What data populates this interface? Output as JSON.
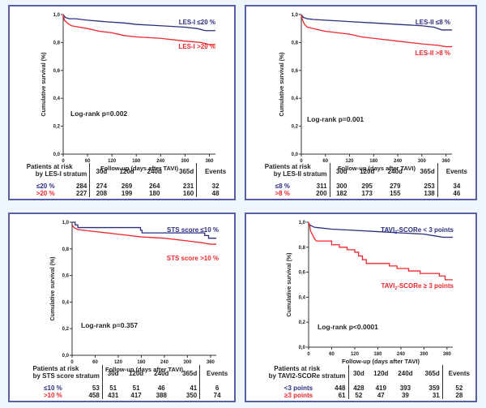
{
  "chart_data": [
    {
      "type": "line",
      "title": "",
      "xlabel": "Follow-up (days after TAVI)",
      "ylabel": "Cumulative survival (%)",
      "xlim": [
        0,
        375
      ],
      "ylim": [
        0,
        1.0
      ],
      "xticks": [
        "0",
        "60",
        "120",
        "180",
        "240",
        "300",
        "360"
      ],
      "yticks": [
        "0,0",
        "0,2",
        "0,4",
        "0,6",
        "0,8",
        "1,0"
      ],
      "annotation": "Log-rank p=0.002",
      "series": [
        {
          "name": "LES-I ≤20 %",
          "color": "#2b2e7f",
          "x": [
            0,
            5,
            15,
            30,
            60,
            100,
            150,
            180,
            240,
            300,
            330,
            350,
            375
          ],
          "y": [
            1.0,
            0.98,
            0.97,
            0.97,
            0.96,
            0.95,
            0.94,
            0.93,
            0.92,
            0.91,
            0.9,
            0.885,
            0.885
          ]
        },
        {
          "name": "LES-I >20 %",
          "color": "#f0262b",
          "x": [
            0,
            3,
            10,
            20,
            40,
            60,
            90,
            120,
            150,
            180,
            240,
            300,
            340,
            360,
            375
          ],
          "y": [
            1.0,
            0.96,
            0.94,
            0.92,
            0.91,
            0.9,
            0.88,
            0.87,
            0.85,
            0.84,
            0.83,
            0.81,
            0.8,
            0.785,
            0.785
          ]
        }
      ],
      "risk_table": {
        "header_label": [
          "Patients at risk",
          "by LES-I stratum"
        ],
        "columns": [
          "30d",
          "120d",
          "240d",
          "365d",
          "Events"
        ],
        "rows": [
          {
            "label": "≤20 %",
            "n": "284",
            "values": [
              "274",
              "269",
              "264",
              "231"
            ],
            "events": "32",
            "color": "blue"
          },
          {
            "label": ">20 %",
            "n": "227",
            "values": [
              "208",
              "199",
              "180",
              "160"
            ],
            "events": "48",
            "color": "red"
          }
        ]
      }
    },
    {
      "type": "line",
      "title": "",
      "xlabel": "Follow-up (days after TAVI)",
      "ylabel": "Cumulative survival (%)",
      "xlim": [
        0,
        375
      ],
      "ylim": [
        0,
        1.0
      ],
      "xticks": [
        "0",
        "60",
        "120",
        "180",
        "240",
        "300",
        "360"
      ],
      "yticks": [
        "0,0",
        "0,2",
        "0,4",
        "0,6",
        "0,8",
        "1,0"
      ],
      "annotation": "Log-rank p=0.001",
      "series": [
        {
          "name": "LES-II ≤8 %",
          "color": "#2b2e7f",
          "x": [
            0,
            5,
            15,
            30,
            60,
            120,
            180,
            240,
            300,
            330,
            350,
            375
          ],
          "y": [
            1.0,
            0.98,
            0.97,
            0.965,
            0.96,
            0.95,
            0.94,
            0.93,
            0.92,
            0.91,
            0.89,
            0.89
          ]
        },
        {
          "name": "LES-II >8 %",
          "color": "#f0262b",
          "x": [
            0,
            3,
            8,
            15,
            30,
            60,
            90,
            120,
            150,
            180,
            240,
            300,
            340,
            360,
            375
          ],
          "y": [
            1.0,
            0.96,
            0.93,
            0.91,
            0.9,
            0.88,
            0.87,
            0.86,
            0.84,
            0.83,
            0.81,
            0.79,
            0.78,
            0.77,
            0.77
          ]
        }
      ],
      "risk_table": {
        "header_label": [
          "Patients at risk",
          "by LES-II stratum"
        ],
        "columns": [
          "30d",
          "120d",
          "240d",
          "365d",
          "Events"
        ],
        "rows": [
          {
            "label": "≤8 %",
            "n": "311",
            "values": [
              "300",
              "295",
              "279",
              "253"
            ],
            "events": "34",
            "color": "blue"
          },
          {
            "label": ">8 %",
            "n": "200",
            "values": [
              "182",
              "173",
              "155",
              "138"
            ],
            "events": "46",
            "color": "red"
          }
        ]
      }
    },
    {
      "type": "line",
      "title": "",
      "xlabel": "Follow-up (days after TAVI)",
      "ylabel": "Cumulative survival (%)",
      "xlim": [
        0,
        375
      ],
      "ylim": [
        0,
        1.0
      ],
      "xticks": [
        "0",
        "60",
        "120",
        "180",
        "240",
        "300",
        "360"
      ],
      "yticks": [
        "0,0",
        "0,2",
        "0,4",
        "0,6",
        "0,8",
        "1,0"
      ],
      "annotation": "Log-rank p=0.357",
      "series": [
        {
          "name": "STS score ≤10 %",
          "color": "#2b2e7f",
          "x": [
            0,
            8,
            8,
            15,
            15,
            178,
            178,
            182,
            182,
            345,
            345,
            355,
            355,
            375
          ],
          "y": [
            1.0,
            1.0,
            0.98,
            0.98,
            0.96,
            0.96,
            0.94,
            0.94,
            0.92,
            0.92,
            0.9,
            0.9,
            0.88,
            0.88
          ]
        },
        {
          "name": "STS score >10 %",
          "color": "#f0262b",
          "x": [
            0,
            5,
            15,
            30,
            60,
            120,
            180,
            240,
            300,
            340,
            360,
            375
          ],
          "y": [
            0.98,
            0.96,
            0.945,
            0.94,
            0.93,
            0.91,
            0.89,
            0.88,
            0.86,
            0.845,
            0.835,
            0.835
          ]
        }
      ],
      "risk_table": {
        "header_label": [
          "Patients at risk",
          "by STS score stratum"
        ],
        "columns": [
          "30d",
          "120d",
          "240d",
          "365d",
          "Events"
        ],
        "rows": [
          {
            "label": "≤10 %",
            "n": "53",
            "values": [
              "51",
              "51",
              "46",
              "41"
            ],
            "events": "6",
            "color": "blue"
          },
          {
            "label": ">10 %",
            "n": "458",
            "values": [
              "431",
              "417",
              "388",
              "350"
            ],
            "events": "74",
            "color": "red"
          }
        ]
      }
    },
    {
      "type": "line",
      "title": "",
      "xlabel": "Follow-up (days after TAVI)",
      "ylabel": "Cumulative survival (%)",
      "xlim": [
        0,
        375
      ],
      "ylim": [
        0,
        1.0
      ],
      "xticks": [
        "0",
        "60",
        "120",
        "180",
        "240",
        "300",
        "360"
      ],
      "yticks": [
        "0,0",
        "0,2",
        "0,4",
        "0,6",
        "0,8",
        "1,0"
      ],
      "annotation": "Log-rank p<0.0001",
      "series": [
        {
          "name": "TAVI2-SCORe < 3 points",
          "color": "#2b2e7f",
          "x": [
            0,
            5,
            15,
            30,
            60,
            120,
            180,
            240,
            300,
            330,
            350,
            375
          ],
          "y": [
            0.99,
            0.975,
            0.96,
            0.955,
            0.945,
            0.935,
            0.925,
            0.915,
            0.905,
            0.89,
            0.88,
            0.88
          ]
        },
        {
          "name": "TAVI2-SCORe ≥ 3 points",
          "color": "#f0262b",
          "x": [
            0,
            3,
            5,
            10,
            15,
            20,
            60,
            60,
            80,
            80,
            100,
            100,
            120,
            120,
            130,
            130,
            140,
            140,
            150,
            150,
            210,
            210,
            230,
            230,
            260,
            260,
            290,
            290,
            340,
            340,
            355,
            355,
            375
          ],
          "y": [
            1.0,
            0.97,
            0.93,
            0.9,
            0.87,
            0.85,
            0.85,
            0.82,
            0.82,
            0.8,
            0.8,
            0.78,
            0.78,
            0.76,
            0.76,
            0.73,
            0.73,
            0.7,
            0.7,
            0.67,
            0.67,
            0.65,
            0.65,
            0.63,
            0.63,
            0.61,
            0.61,
            0.59,
            0.59,
            0.57,
            0.57,
            0.54,
            0.54
          ]
        }
      ],
      "risk_table": {
        "header_label": [
          "Patients at risk",
          "by TAVI2-SCORe stratum"
        ],
        "columns": [
          "30d",
          "120d",
          "240d",
          "365d",
          "Events"
        ],
        "rows": [
          {
            "label": "<3 points",
            "n": "448",
            "values": [
              "428",
              "419",
              "393",
              "359"
            ],
            "events": "52",
            "color": "blue"
          },
          {
            "label": "≥3 points",
            "n": "61",
            "values": [
              "52",
              "47",
              "39",
              "31"
            ],
            "events": "28",
            "color": "red"
          }
        ]
      }
    }
  ],
  "colors": {
    "blue": "#2b2e7f",
    "red": "#f0262b",
    "frame": "#5a5fa0"
  }
}
